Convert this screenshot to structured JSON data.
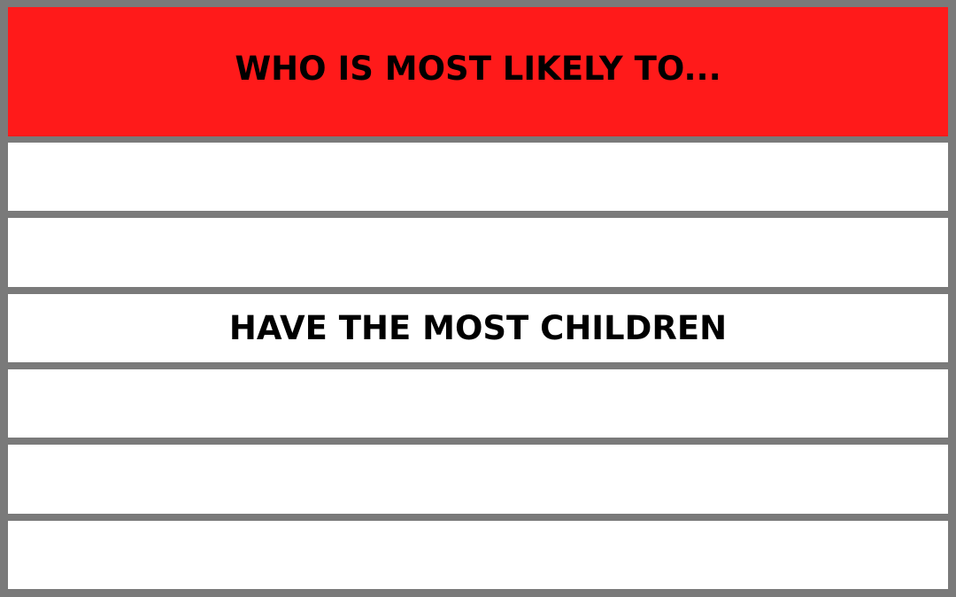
{
  "header": {
    "title": "WHO IS MOST LIKELY TO...",
    "background": "#ff1a1a"
  },
  "rows": [
    {
      "text": ""
    },
    {
      "text": ""
    },
    {
      "text": "HAVE THE MOST CHILDREN"
    },
    {
      "text": ""
    },
    {
      "text": ""
    },
    {
      "text": ""
    }
  ],
  "colors": {
    "frame": "#7a7a7a",
    "row_background": "#ffffff",
    "text": "#000000"
  }
}
